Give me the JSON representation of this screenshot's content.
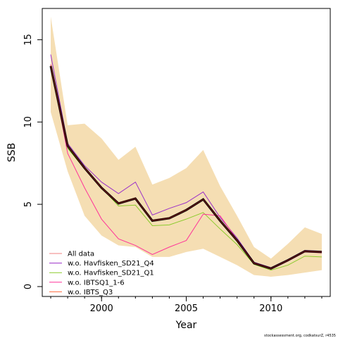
{
  "chart_data": {
    "type": "line",
    "xlabel": "Year",
    "ylabel": "SSB",
    "xlim": [
      1996.5,
      2013.5
    ],
    "ylim": [
      -0.6,
      16.9
    ],
    "x_ticks": [
      2000,
      2005,
      2010
    ],
    "y_ticks": [
      0,
      5,
      10,
      15
    ],
    "grid": false,
    "legend_position": "bottom-left",
    "x": [
      1997,
      1998,
      1999,
      2000,
      2001,
      2002,
      2003,
      2004,
      2005,
      2006,
      2007,
      2008,
      2009,
      2010,
      2011,
      2012,
      2013
    ],
    "confidence_band": {
      "color": "#F5DEB3",
      "upper": [
        16.4,
        9.8,
        9.9,
        9.0,
        7.7,
        8.5,
        6.2,
        6.6,
        7.2,
        8.3,
        6.1,
        4.3,
        2.4,
        1.7,
        2.6,
        3.6,
        3.2
      ],
      "lower": [
        10.6,
        7.0,
        4.3,
        3.1,
        2.5,
        2.4,
        1.8,
        1.8,
        2.1,
        2.3,
        1.8,
        1.3,
        0.7,
        0.6,
        0.7,
        0.85,
        1.0
      ]
    },
    "series": [
      {
        "name": "All data",
        "color": "#F08080",
        "values": [
          13.4,
          8.55,
          7.2,
          6.0,
          5.05,
          5.35,
          4.0,
          4.15,
          4.65,
          5.3,
          4.0,
          2.8,
          1.42,
          1.1,
          1.6,
          2.15,
          2.1
        ]
      },
      {
        "name": "w.o. Havfisken_SD21_Q4",
        "color": "#9B30C8",
        "values": [
          14.1,
          8.7,
          7.35,
          6.35,
          5.65,
          6.35,
          4.35,
          4.75,
          5.1,
          5.75,
          4.2,
          2.95,
          1.48,
          1.15,
          1.65,
          2.2,
          2.15
        ]
      },
      {
        "name": "w.o. Havfisken_SD21_Q1",
        "color": "#8BCB2C",
        "values": [
          13.2,
          8.4,
          7.15,
          6.0,
          4.9,
          4.95,
          3.7,
          3.75,
          4.1,
          4.5,
          3.5,
          2.55,
          1.35,
          1.0,
          1.3,
          1.85,
          1.8
        ]
      },
      {
        "name": "w.o. IBTSQ1_1-6",
        "color": "#FF3399",
        "values": [
          13.5,
          8.1,
          6.0,
          4.1,
          2.9,
          2.5,
          1.95,
          2.4,
          2.8,
          4.4,
          4.3,
          2.85,
          1.38,
          1.05,
          1.55,
          2.1,
          2.05
        ]
      },
      {
        "name": "w.o. IBTS_Q3",
        "color": "#FF6A3D",
        "values": [
          13.45,
          8.6,
          7.2,
          6.05,
          5.1,
          5.4,
          4.05,
          4.2,
          4.7,
          5.3,
          4.05,
          2.85,
          1.45,
          1.12,
          1.62,
          2.18,
          2.1
        ]
      }
    ],
    "main_line": {
      "color": "#000000",
      "values": [
        13.4,
        8.55,
        7.2,
        6.0,
        5.05,
        5.35,
        4.0,
        4.15,
        4.65,
        5.3,
        4.0,
        2.8,
        1.42,
        1.1,
        1.6,
        2.15,
        2.1
      ]
    },
    "footnote": "stockassessment.org, codkatsurZ, r4535"
  }
}
